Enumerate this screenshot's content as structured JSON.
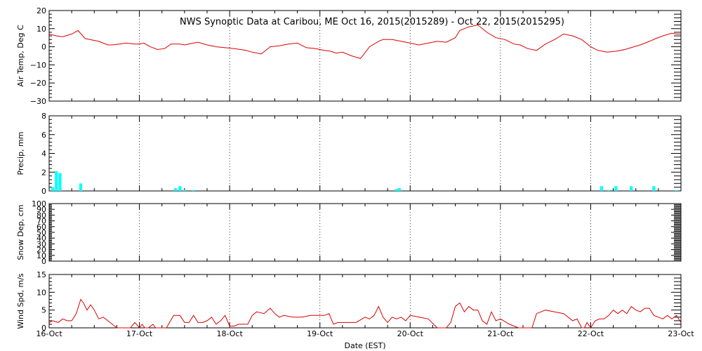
{
  "title": "NWS Synoptic Data at Caribou, ME   Oct 16, 2015(2015289) - Oct 22, 2015(2015295)",
  "xlabel": "Date (EST)",
  "x_ticks": [
    "16-Oct",
    "17-Oct",
    "18-Oct",
    "19-Oct",
    "20-Oct",
    "21-Oct",
    "22-Oct",
    "23-Oct"
  ],
  "chart_data": [
    {
      "type": "line",
      "ylabel": "Air Temp, Deg C",
      "ylim": [
        -30,
        20
      ],
      "yticks": [
        -30,
        -20,
        -10,
        0,
        10,
        20
      ],
      "color": "#dd0000",
      "grid": true,
      "x_unit": "days since 16-Oct 00:00 EST",
      "series": [
        {
          "x": [
            0,
            0.08,
            0.15,
            0.25,
            0.32,
            0.4,
            0.45,
            0.55,
            0.65,
            0.7,
            0.78,
            0.85,
            0.95,
            1.0,
            1.05,
            1.12,
            1.2,
            1.28,
            1.35,
            1.45,
            1.5,
            1.6,
            1.65,
            1.75,
            1.85,
            1.95,
            2.05,
            2.12,
            2.18,
            2.25,
            2.35,
            2.45,
            2.55,
            2.65,
            2.75,
            2.85,
            2.95,
            3.05,
            3.12,
            3.18,
            3.25,
            3.35,
            3.45,
            3.55,
            3.65,
            3.7,
            3.8,
            3.9,
            4.0,
            4.1,
            4.2,
            4.3,
            4.4,
            4.5,
            4.55,
            4.65,
            4.75,
            4.85,
            4.95,
            5.05,
            5.15,
            5.22,
            5.3,
            5.4,
            5.5,
            5.6,
            5.7,
            5.8,
            5.9,
            6.0,
            6.08,
            6.18,
            6.28,
            6.38,
            6.48,
            6.55,
            6.65,
            6.72,
            6.8,
            6.9,
            6.95,
            7.0
          ],
          "y": [
            7,
            6,
            5.5,
            7,
            9,
            4.5,
            4,
            3,
            1,
            1,
            1.5,
            2,
            1.5,
            1.5,
            2,
            0,
            -1.5,
            -1,
            1.5,
            1.5,
            1,
            2,
            2.5,
            1,
            0,
            -0.5,
            -1,
            -1.5,
            -2,
            -3,
            -4,
            0,
            0.5,
            1.5,
            2,
            -0.5,
            -1,
            -2,
            -2.5,
            -3.5,
            -3,
            -5,
            -6.5,
            0,
            3,
            4,
            4,
            3,
            2,
            1,
            2,
            3,
            2.5,
            5,
            9,
            11,
            12,
            8,
            5,
            4,
            1.5,
            1,
            -1,
            -2,
            1.5,
            4,
            7,
            6,
            4,
            0,
            -2,
            -3,
            -2.5,
            -1.5,
            0,
            1,
            3,
            4.5,
            6,
            7.5,
            7,
            7
          ]
        }
      ]
    },
    {
      "type": "bar",
      "ylabel": "Precip, mm",
      "ylim": [
        0,
        8
      ],
      "yticks": [
        0,
        2,
        4,
        6,
        8
      ],
      "color": "#00ffff",
      "grid": true,
      "x_unit": "days since 16-Oct 00:00 EST",
      "series": [
        {
          "x": [
            0.04,
            0.08,
            0.12,
            0.35,
            1.4,
            1.45,
            1.5,
            1.6,
            3.85,
            3.88,
            6.12,
            6.2,
            6.28,
            6.45,
            6.7,
            6.95
          ],
          "values": [
            0.4,
            2.1,
            1.9,
            0.8,
            0.3,
            0.5,
            0.1,
            0.1,
            0.2,
            0.3,
            0.5,
            0.1,
            0.5,
            0.5,
            0.5,
            0.1
          ]
        }
      ]
    },
    {
      "type": "line",
      "ylabel": "Snow Dep, cm",
      "ylim": [
        0,
        100
      ],
      "yticks": [
        0,
        10,
        20,
        30,
        40,
        50,
        60,
        70,
        80,
        90,
        100
      ],
      "color": "#dd0000",
      "grid": true,
      "series": [
        {
          "x": [],
          "y": []
        }
      ]
    },
    {
      "type": "line",
      "ylabel": "Wind Spd, m/s",
      "ylim": [
        0,
        15
      ],
      "yticks": [
        0,
        5,
        10,
        15
      ],
      "color": "#dd0000",
      "grid": true,
      "x_unit": "days since 16-Oct 00:00 EST",
      "series": [
        {
          "x": [
            0,
            0.04,
            0.1,
            0.15,
            0.2,
            0.25,
            0.3,
            0.35,
            0.38,
            0.42,
            0.46,
            0.5,
            0.55,
            0.6,
            0.65,
            0.7,
            0.75,
            0.8,
            0.85,
            0.9,
            0.95,
            1.0,
            1.03,
            1.06,
            1.1,
            1.15,
            1.18,
            1.22,
            1.3,
            1.38,
            1.45,
            1.5,
            1.55,
            1.6,
            1.65,
            1.7,
            1.75,
            1.8,
            1.85,
            1.9,
            1.95,
            2.0,
            2.05,
            2.1,
            2.15,
            2.2,
            2.25,
            2.3,
            2.38,
            2.45,
            2.5,
            2.55,
            2.6,
            2.7,
            2.8,
            2.9,
            3.0,
            3.05,
            3.1,
            3.15,
            3.2,
            3.3,
            3.4,
            3.5,
            3.55,
            3.6,
            3.65,
            3.7,
            3.75,
            3.8,
            3.85,
            3.9,
            3.95,
            4.0,
            4.1,
            4.2,
            4.3,
            4.4,
            4.45,
            4.5,
            4.55,
            4.6,
            4.65,
            4.7,
            4.75,
            4.8,
            4.85,
            4.9,
            4.95,
            5.0,
            5.1,
            5.2,
            5.3,
            5.35,
            5.4,
            5.5,
            5.6,
            5.7,
            5.8,
            5.85,
            5.9,
            5.93,
            5.96,
            6.0,
            6.05,
            6.1,
            6.15,
            6.2,
            6.25,
            6.3,
            6.35,
            6.4,
            6.45,
            6.5,
            6.55,
            6.6,
            6.65,
            6.7,
            6.75,
            6.8,
            6.85,
            6.9,
            6.95,
            7.0
          ],
          "y": [
            1.5,
            2,
            1.5,
            2.5,
            2,
            2,
            4,
            8,
            7,
            5,
            6.5,
            5,
            2.5,
            3,
            2,
            1,
            0,
            0,
            0,
            0,
            1.5,
            0,
            1,
            0,
            0,
            1,
            0,
            0,
            0,
            3.5,
            3.5,
            1.5,
            1.5,
            3.5,
            1.5,
            1.5,
            2,
            3,
            1,
            2,
            3.5,
            0.5,
            0.5,
            1,
            1,
            1,
            3.5,
            4.5,
            4,
            5.5,
            4,
            3,
            3.5,
            3,
            3,
            3.5,
            3.5,
            3.5,
            4,
            1,
            1.5,
            1.5,
            1.5,
            3,
            2.5,
            3.5,
            6,
            3,
            1.5,
            3,
            2.5,
            3,
            2,
            3.5,
            3,
            2.5,
            0,
            0,
            1.5,
            6,
            7,
            4.5,
            6,
            5,
            5,
            2,
            1,
            4.5,
            2,
            2.5,
            1,
            0,
            0,
            0,
            4,
            5,
            4.5,
            4,
            2,
            2.5,
            0,
            0,
            1.5,
            0,
            2,
            2.5,
            2.5,
            3.5,
            5,
            4,
            5,
            4,
            6,
            5,
            4.5,
            5.5,
            5.5,
            3.5,
            3,
            2.5,
            3.5,
            2.5,
            3.5,
            1.5
          ]
        }
      ]
    }
  ]
}
